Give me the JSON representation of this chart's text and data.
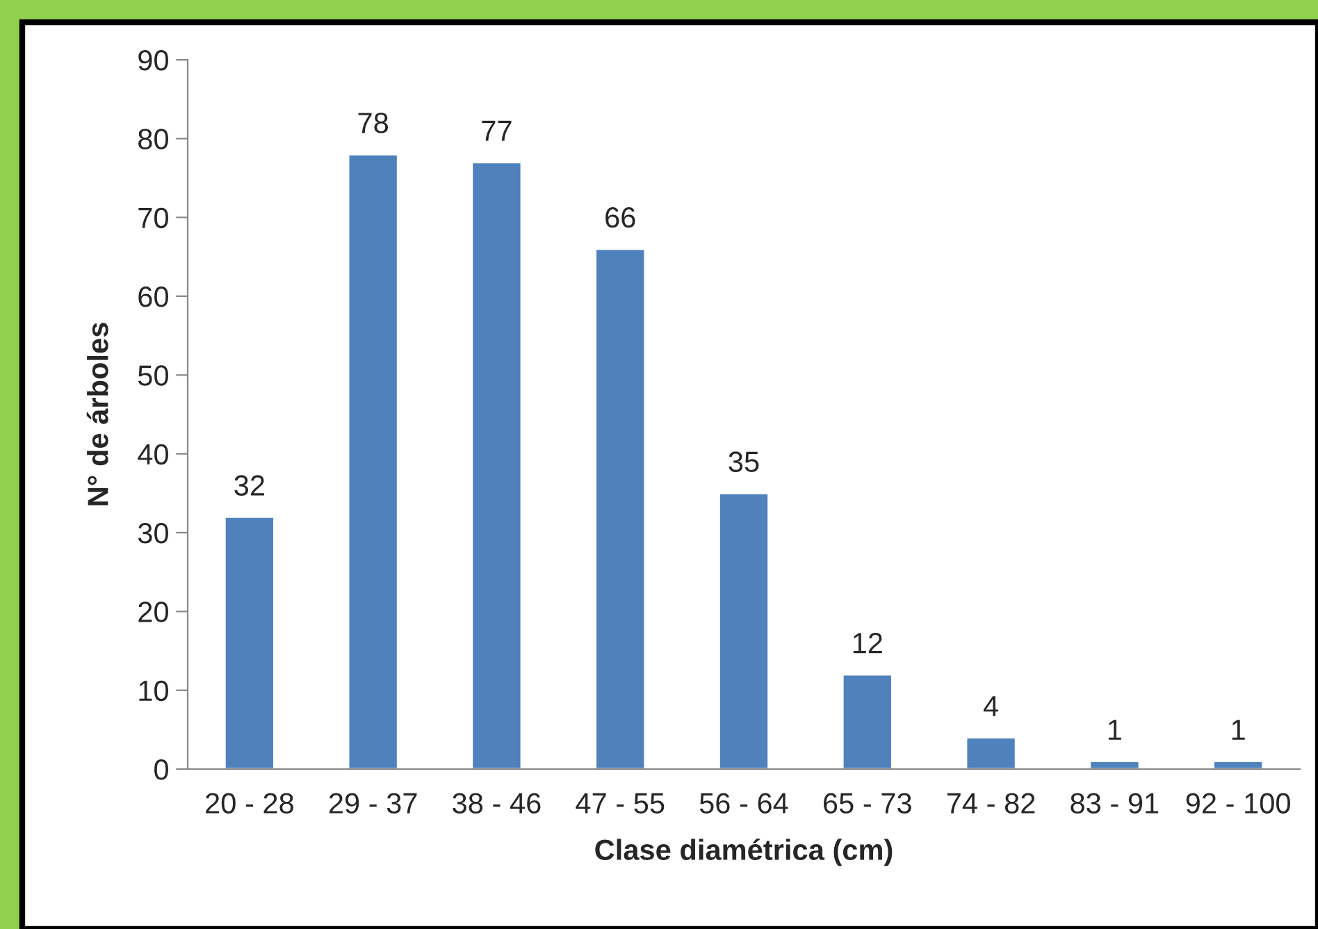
{
  "chart_data": {
    "type": "bar",
    "xlabel": "Clase diamétrica (cm)",
    "ylabel": "N° de árboles",
    "categories": [
      "20 - 28",
      "29 - 37",
      "38 - 46",
      "47 - 55",
      "56 - 64",
      "65 - 73",
      "74 - 82",
      "83 - 91",
      "92 - 100"
    ],
    "values": [
      32,
      78,
      77,
      66,
      35,
      12,
      4,
      1,
      1
    ],
    "color": "#4f81bd",
    "ylim": [
      0,
      90
    ],
    "yticks": [
      0,
      10,
      20,
      30,
      40,
      50,
      60,
      70,
      80,
      90
    ],
    "grid": false,
    "data_labels": true
  }
}
